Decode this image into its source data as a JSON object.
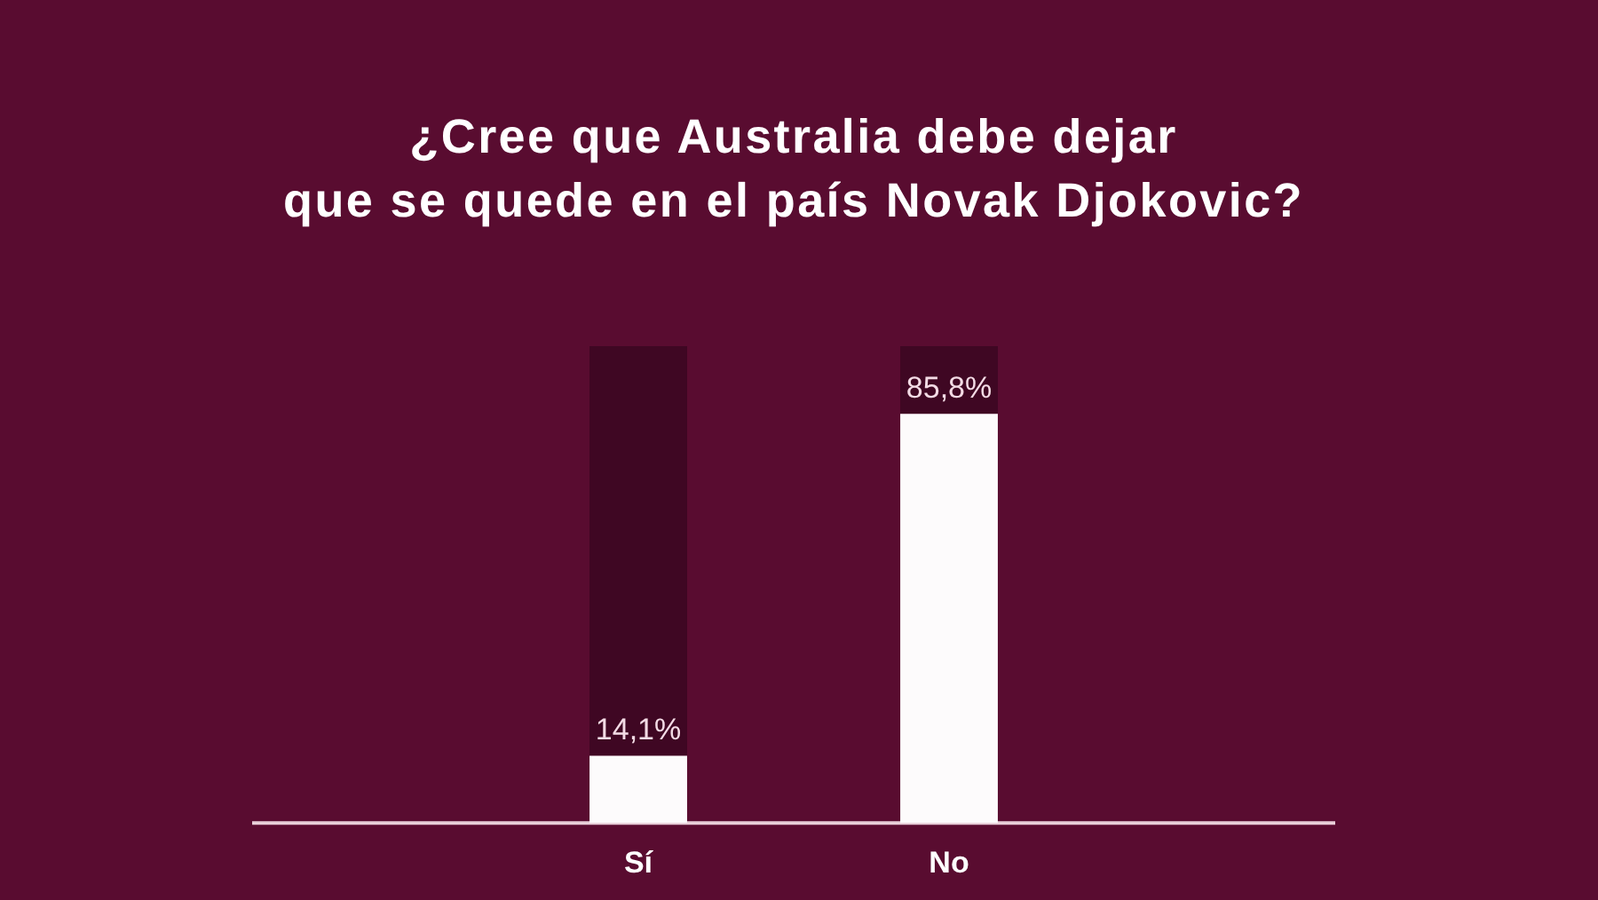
{
  "chart_data": {
    "type": "bar",
    "title": "¿Cree que Australia debe dejar\nque se quede en el país Novak Djokovic?",
    "categories": [
      "Sí",
      "No"
    ],
    "series": [
      {
        "color": "#fdfbfc",
        "values": [
          14.1,
          85.8
        ],
        "value_labels": [
          "14,1%",
          "85,8%"
        ]
      },
      {
        "color": "#3f0723",
        "values": [
          85.9,
          14.2
        ]
      }
    ],
    "stacked": true,
    "ylim": [
      0,
      100
    ],
    "tick_labels": "x"
  }
}
